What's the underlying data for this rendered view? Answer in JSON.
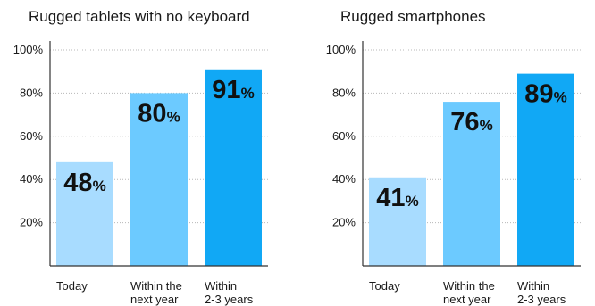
{
  "chart_data": [
    {
      "type": "bar",
      "title": "Rugged tablets with no keyboard",
      "categories": [
        [
          "Today"
        ],
        [
          "Within the",
          "next year"
        ],
        [
          "Within",
          "2-3 years"
        ]
      ],
      "values": [
        48,
        80,
        91
      ],
      "value_labels": [
        "48",
        "80",
        "91"
      ],
      "value_suffix": "%",
      "yticks": [
        "20%",
        "40%",
        "60%",
        "80%",
        "100%"
      ],
      "ylim": [
        0,
        100
      ],
      "grid": true,
      "colors": [
        "#a8dcff",
        "#6ccaff",
        "#11a8f5"
      ]
    },
    {
      "type": "bar",
      "title": "Rugged smartphones",
      "categories": [
        [
          "Today"
        ],
        [
          "Within the",
          "next year"
        ],
        [
          "Within",
          "2-3 years"
        ]
      ],
      "values": [
        41,
        76,
        89
      ],
      "value_labels": [
        "41",
        "76",
        "89"
      ],
      "value_suffix": "%",
      "yticks": [
        "20%",
        "40%",
        "60%",
        "80%",
        "100%"
      ],
      "ylim": [
        0,
        100
      ],
      "grid": true,
      "colors": [
        "#a8dcff",
        "#6ccaff",
        "#11a8f5"
      ]
    }
  ]
}
